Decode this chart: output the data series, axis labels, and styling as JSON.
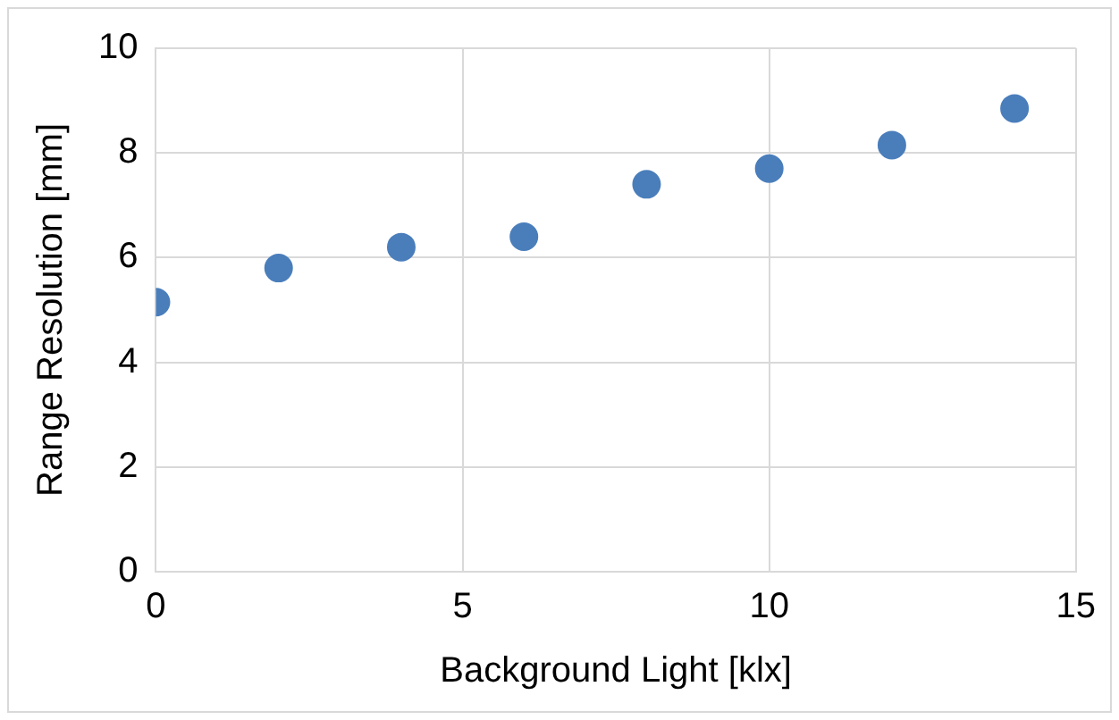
{
  "chart_data": {
    "type": "scatter",
    "xlabel": "Background Light [klx]",
    "ylabel": "Range Resolution [mm]",
    "x": [
      0,
      2,
      4,
      6,
      8,
      10,
      12,
      14
    ],
    "series": [
      {
        "color": "#4a7ebb",
        "values": [
          5.15,
          5.8,
          6.2,
          6.4,
          7.4,
          7.7,
          8.15,
          8.85
        ]
      }
    ],
    "xlim": [
      0,
      15
    ],
    "xticks": [
      0,
      5,
      10,
      15
    ],
    "ylim": [
      0,
      10
    ],
    "yticks": [
      0,
      2,
      4,
      6,
      8,
      10
    ],
    "grid": true,
    "marker": "circle",
    "legend": false
  }
}
